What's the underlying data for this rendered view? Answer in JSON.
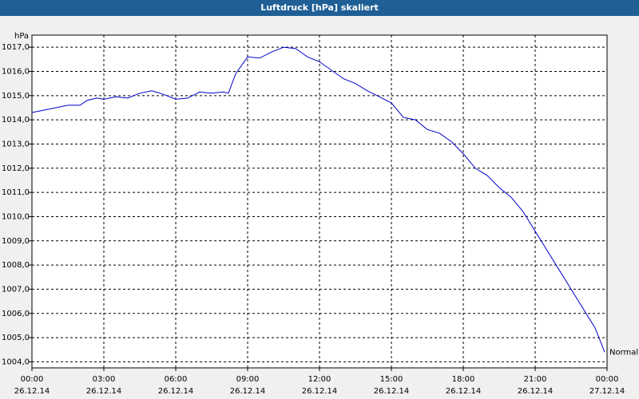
{
  "chart_data": {
    "type": "line",
    "title": "Luftdruck [hPa] skaliert",
    "y_label": "hPa",
    "x": [
      0,
      0.5,
      1,
      1.5,
      2,
      2.3,
      2.7,
      3,
      3.5,
      4,
      4.5,
      5,
      5.5,
      6,
      6.5,
      7,
      7.5,
      8,
      8.2,
      8.5,
      9,
      9.5,
      10,
      10.5,
      11,
      11.5,
      12,
      13,
      13.5,
      14,
      15,
      15.5,
      16,
      16.5,
      17,
      17.5,
      18,
      18.5,
      19,
      19.5,
      20,
      20.5,
      21,
      21.5,
      22,
      22.5,
      23,
      23.5,
      23.9
    ],
    "series": [
      {
        "name": "Normal",
        "color": "#0000cc",
        "values": [
          1014.3,
          1014.4,
          1014.5,
          1014.6,
          1014.6,
          1014.8,
          1014.9,
          1014.85,
          1014.95,
          1014.9,
          1015.1,
          1015.2,
          1015.05,
          1014.85,
          1014.9,
          1015.15,
          1015.1,
          1015.15,
          1015.1,
          1015.9,
          1016.6,
          1016.55,
          1016.8,
          1017.0,
          1016.95,
          1016.6,
          1016.4,
          1015.7,
          1015.5,
          1015.2,
          1014.7,
          1014.1,
          1014.0,
          1013.6,
          1013.45,
          1013.1,
          1012.6,
          1012.0,
          1011.7,
          1011.2,
          1010.8,
          1010.2,
          1009.4,
          1008.6,
          1007.8,
          1007.0,
          1006.2,
          1005.4,
          1004.4
        ]
      }
    ],
    "xlim": [
      0,
      24
    ],
    "ylim": [
      1003.75,
      1017.5
    ],
    "xticks": [
      {
        "value": 0,
        "label": "00:00"
      },
      {
        "value": 3,
        "label": "03:00"
      },
      {
        "value": 6,
        "label": "06:00"
      },
      {
        "value": 9,
        "label": "09:00"
      },
      {
        "value": 12,
        "label": "12:00"
      },
      {
        "value": 15,
        "label": "15:00"
      },
      {
        "value": 18,
        "label": "18:00"
      },
      {
        "value": 21,
        "label": "21:00"
      },
      {
        "value": 24,
        "label": "00:00"
      }
    ],
    "xtick_dates": [
      "26.12.14",
      "26.12.14",
      "26.12.14",
      "26.12.14",
      "26.12.14",
      "26.12.14",
      "26.12.14",
      "26.12.14",
      "27.12.14"
    ],
    "yticks": [
      {
        "value": 1004,
        "label": "1004,0"
      },
      {
        "value": 1005,
        "label": "1005,0"
      },
      {
        "value": 1006,
        "label": "1006,0"
      },
      {
        "value": 1007,
        "label": "1007,0"
      },
      {
        "value": 1008,
        "label": "1008,0"
      },
      {
        "value": 1009,
        "label": "1009,0"
      },
      {
        "value": 1010,
        "label": "1010,0"
      },
      {
        "value": 1011,
        "label": "1011,0"
      },
      {
        "value": 1012,
        "label": "1012,0"
      },
      {
        "value": 1013,
        "label": "1013,0"
      },
      {
        "value": 1014,
        "label": "1014,0"
      },
      {
        "value": 1015,
        "label": "1015,0"
      },
      {
        "value": 1016,
        "label": "1016,0"
      },
      {
        "value": 1017,
        "label": "1017,0"
      }
    ],
    "grid": true
  }
}
